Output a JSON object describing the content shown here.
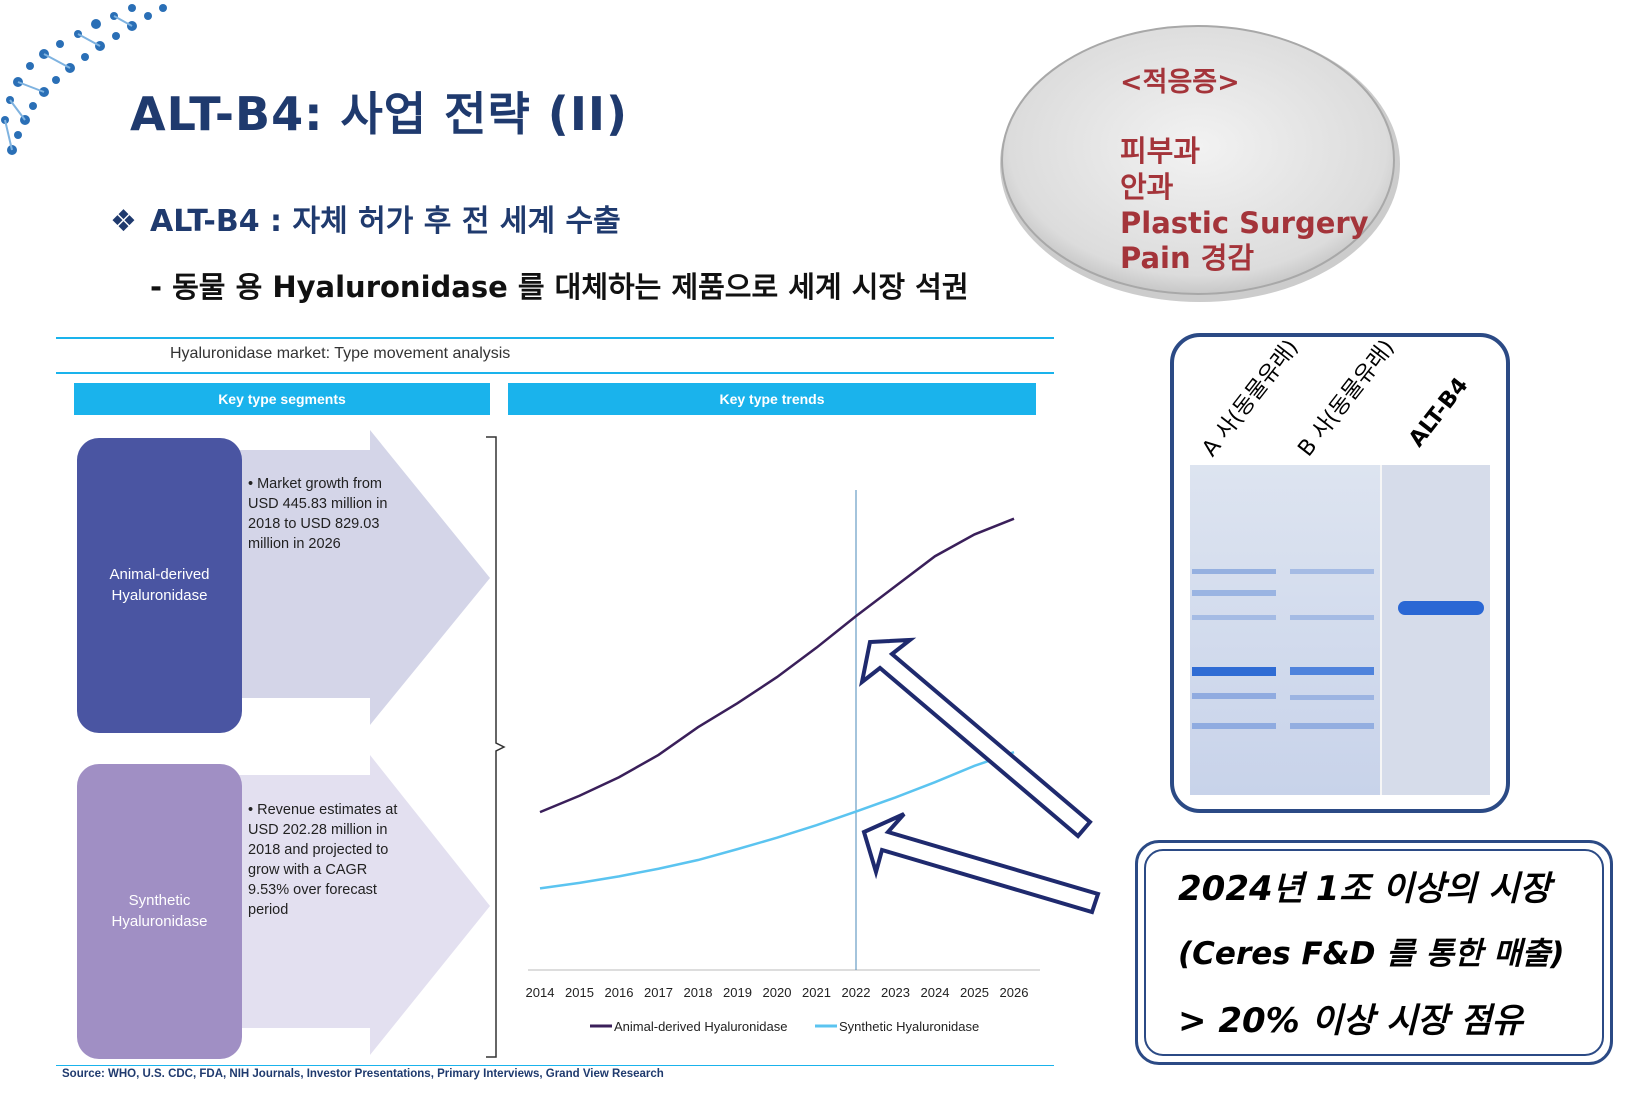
{
  "slide": {
    "title": "ALT-B4: 사업 전략 (II)",
    "bullet_symbol": "❖",
    "subtitle": "ALT-B4 :  자체 허가 후 전 세계 수출",
    "description": "- 동물 용 Hyaluronidase 를 대체하는 제품으로 세계 시장 석권"
  },
  "indications": {
    "heading": "<적응증>",
    "items": [
      "피부과",
      "안과",
      "Plastic Surgery",
      "Pain 경감"
    ]
  },
  "market_figure": {
    "title": "Hyaluronidase market: Type movement analysis",
    "header_left": "Key type segments",
    "header_right": "Key type trends",
    "segments": [
      {
        "name_line1": "Animal-derived",
        "name_line2": "Hyaluronidase",
        "text": "• Market growth from USD 445.83 million in 2018 to USD 829.03 million in 2026",
        "color": "#4a55a2"
      },
      {
        "name_line1": "Synthetic",
        "name_line2": "Hyaluronidase",
        "text": "• Revenue estimates at USD 202.28 million in 2018 and projected to grow with a CAGR 9.53% over forecast period",
        "color": "#a08fc4"
      }
    ],
    "source": "Source: WHO, U.S. CDC, FDA, NIH Journals, Investor Presentations, Primary Interviews, Grand View Research"
  },
  "chart_data": {
    "type": "line",
    "x": [
      "2014",
      "2015",
      "2016",
      "2017",
      "2018",
      "2019",
      "2020",
      "2021",
      "2022",
      "2023",
      "2024",
      "2025",
      "2026"
    ],
    "series": [
      {
        "name": "Animal-derived Hyaluronidase",
        "color": "#3a1f5a",
        "values": [
          290,
          320,
          354,
          395,
          446,
          490,
          538,
          592,
          650,
          705,
          760,
          800,
          829
        ]
      },
      {
        "name": "Synthetic Hyaluronidase",
        "color": "#5bc4f0",
        "values": [
          150,
          160,
          172,
          186,
          202,
          222,
          243,
          266,
          291,
          317,
          345,
          375,
          400
        ]
      }
    ],
    "vline_at": "2022",
    "ylim": [
      0,
      900
    ],
    "legend_position": "bottom",
    "grid": false
  },
  "gel": {
    "lanes": [
      "A 사(동물유래)",
      "B 사(동물유래)",
      "ALT-B4"
    ]
  },
  "callout": {
    "line1": "2024년 1조 이상의 시장",
    "line2": "(Ceres F&D 를 통한 매출)",
    "line3": "> 20% 이상 시장 점유"
  }
}
